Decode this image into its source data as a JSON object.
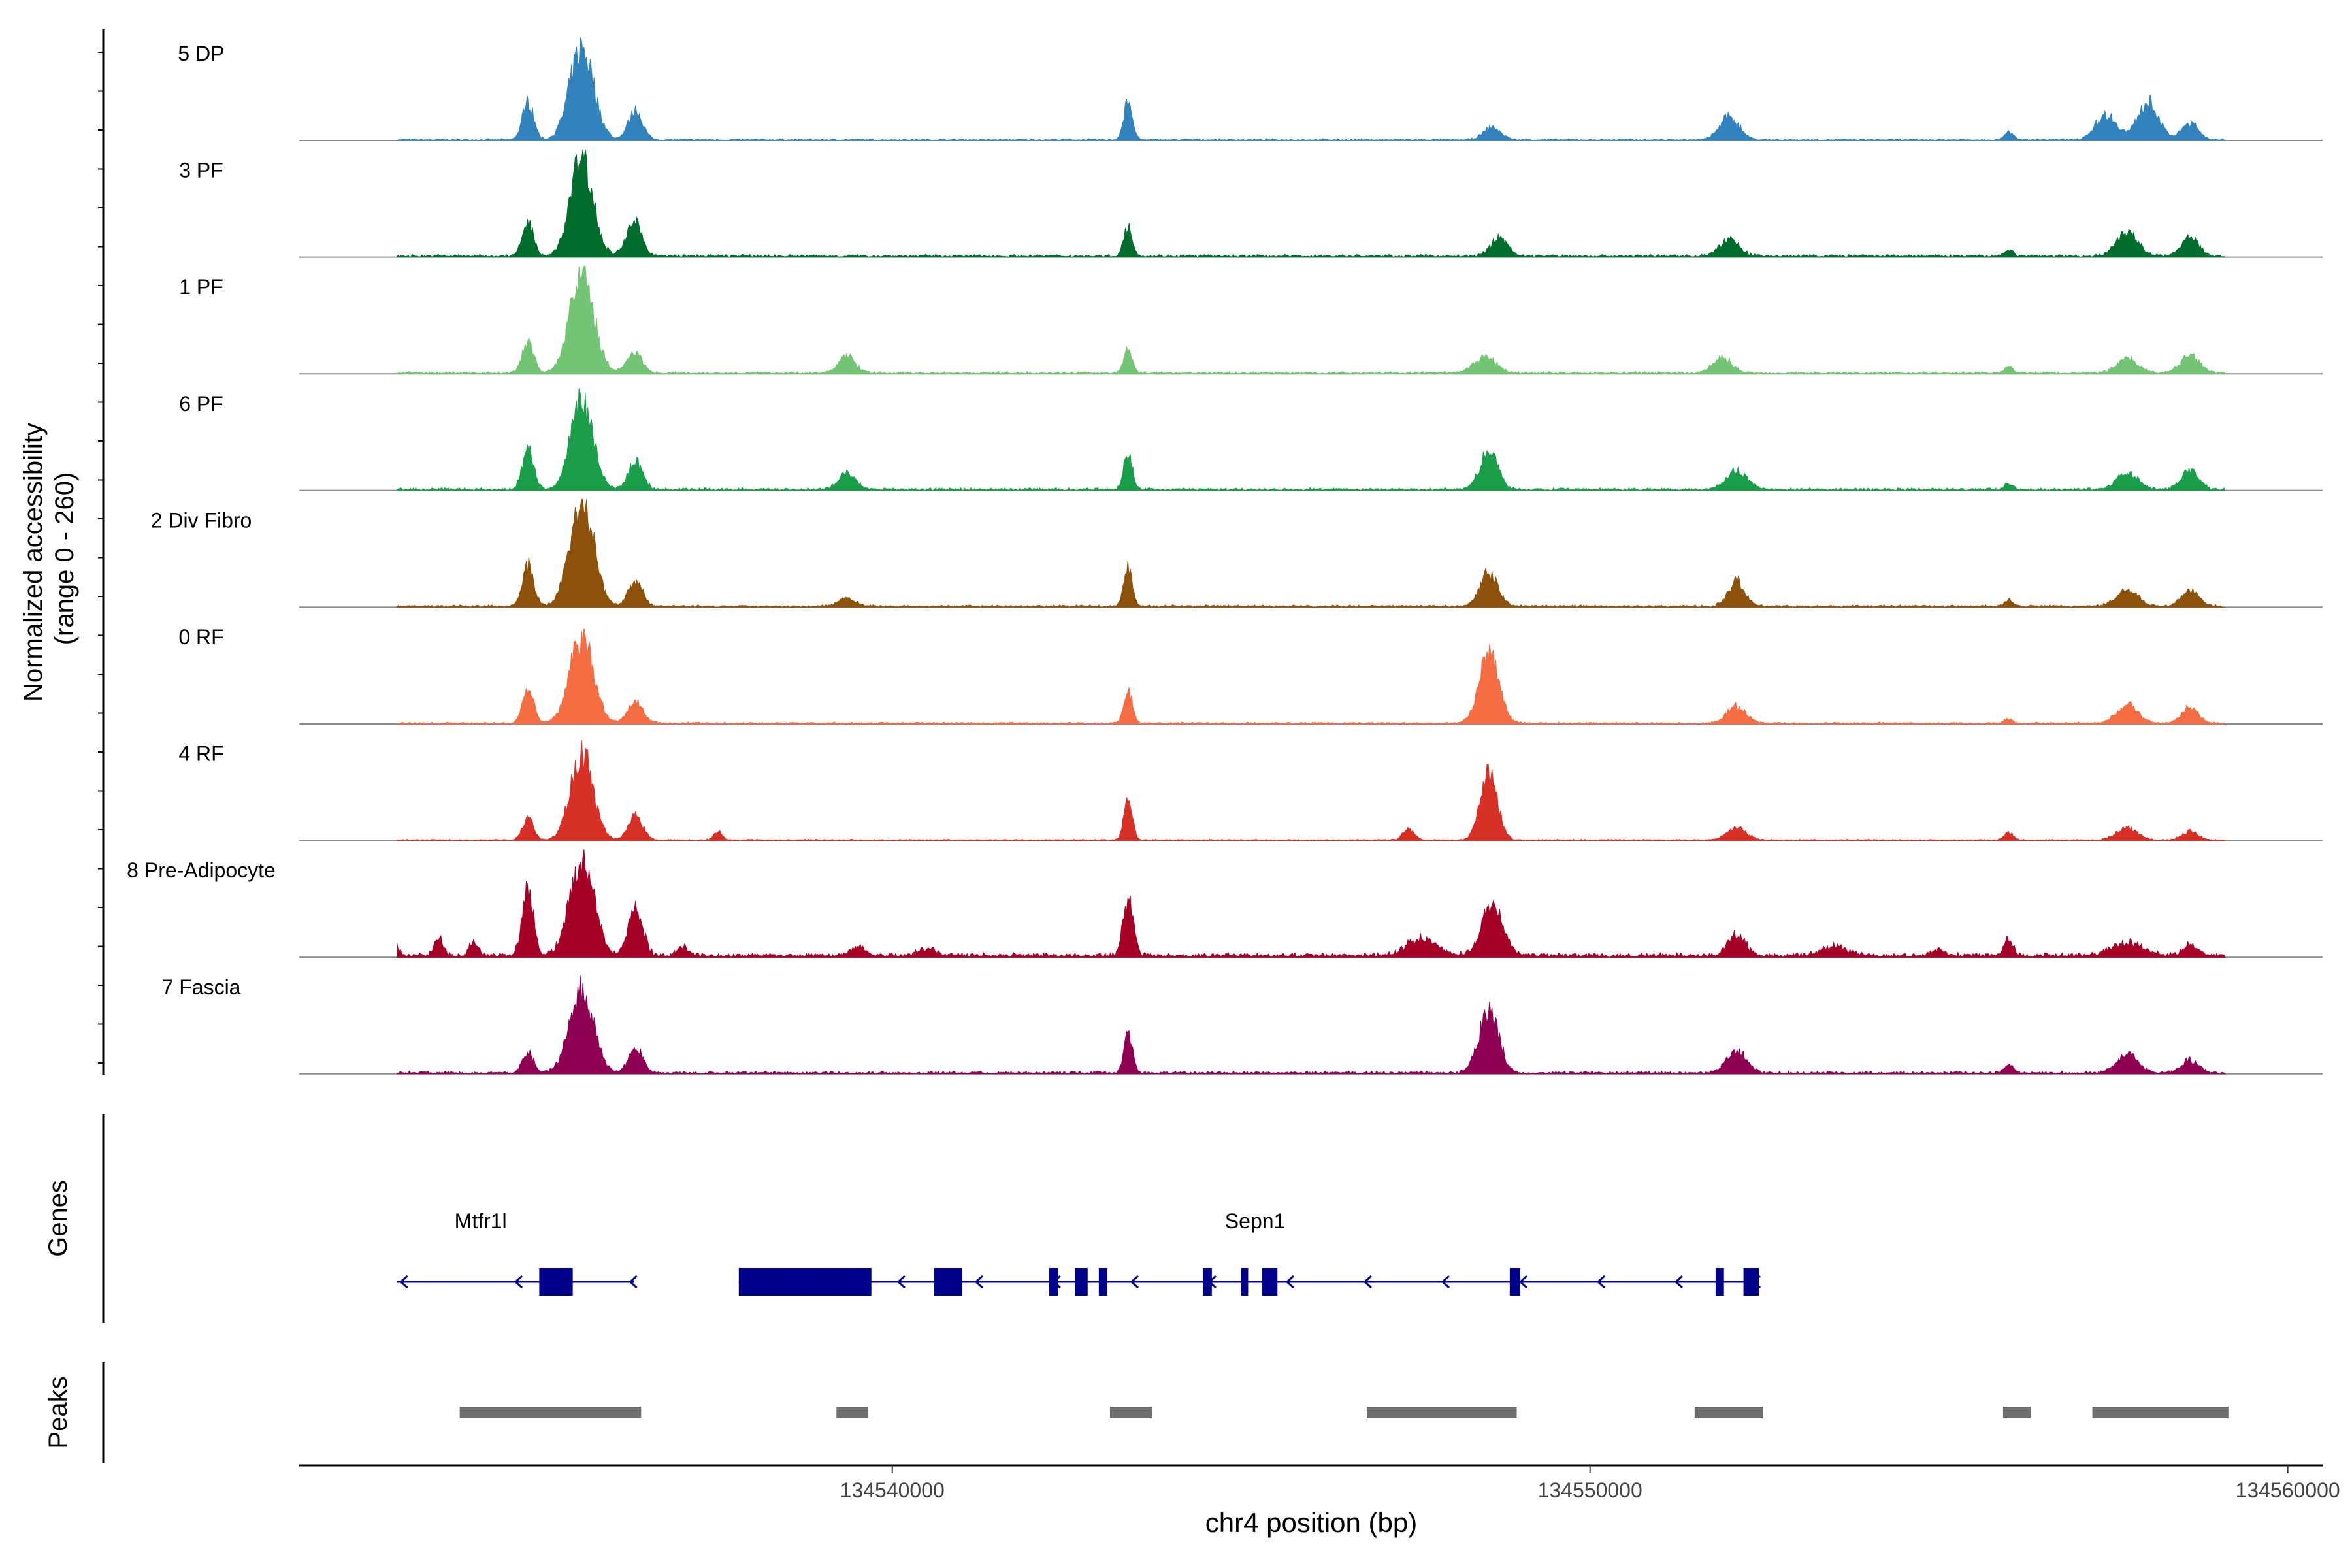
{
  "chart_data": {
    "type": "area",
    "title": "",
    "xlabel": "chr4 position (bp)",
    "ylabel": [
      "Normalized accessibility",
      "(range 0 - 260)"
    ],
    "genes_label": "Genes",
    "peaks_label": "Peaks",
    "xlim": [
      134531500,
      134560500
    ],
    "ylim": [
      0,
      260
    ],
    "x_ticks": [
      {
        "value": 134540000,
        "label": "134540000"
      },
      {
        "value": 134550000,
        "label": "134550000"
      },
      {
        "value": 134560000,
        "label": "134560000"
      }
    ],
    "track_start": 134532900,
    "track_end": 134559100,
    "tracks": [
      {
        "name": "5 DP",
        "color": "#3182bd",
        "noise": 4,
        "peaks": [
          [
            134534780,
            90,
            80
          ],
          [
            134535550,
            220,
            170
          ],
          [
            134536320,
            70,
            100
          ],
          [
            134543380,
            95,
            60
          ],
          [
            134548600,
            30,
            120
          ],
          [
            134552000,
            55,
            140
          ],
          [
            134557400,
            60,
            150
          ],
          [
            134558000,
            90,
            150
          ],
          [
            134558600,
            40,
            120
          ],
          [
            134556000,
            20,
            60
          ]
        ]
      },
      {
        "name": "3 PF",
        "color": "#006d2c",
        "noise": 6,
        "peaks": [
          [
            134534780,
            80,
            80
          ],
          [
            134535550,
            240,
            160
          ],
          [
            134536300,
            80,
            110
          ],
          [
            134543380,
            75,
            60
          ],
          [
            134548700,
            45,
            120
          ],
          [
            134552000,
            40,
            140
          ],
          [
            134557700,
            60,
            150
          ],
          [
            134558600,
            45,
            120
          ],
          [
            134556000,
            15,
            60
          ]
        ]
      },
      {
        "name": "1 PF",
        "color": "#74c476",
        "noise": 5,
        "peaks": [
          [
            134534780,
            80,
            80
          ],
          [
            134535550,
            240,
            170
          ],
          [
            134536300,
            50,
            110
          ],
          [
            134539350,
            40,
            120
          ],
          [
            134543380,
            60,
            60
          ],
          [
            134548500,
            40,
            150
          ],
          [
            134551900,
            35,
            140
          ],
          [
            134557700,
            35,
            150
          ],
          [
            134558600,
            40,
            140
          ],
          [
            134556000,
            15,
            60
          ]
        ]
      },
      {
        "name": "6 PF",
        "color": "#1b9e4a",
        "noise": 6,
        "peaks": [
          [
            134534780,
            100,
            80
          ],
          [
            134535550,
            210,
            160
          ],
          [
            134536320,
            70,
            100
          ],
          [
            134539350,
            40,
            120
          ],
          [
            134543380,
            90,
            60
          ],
          [
            134548550,
            90,
            130
          ],
          [
            134552100,
            45,
            150
          ],
          [
            134557700,
            40,
            150
          ],
          [
            134558600,
            45,
            120
          ],
          [
            134556000,
            15,
            60
          ]
        ]
      },
      {
        "name": "2 Div Fibro",
        "color": "#8c510a",
        "noise": 5,
        "peaks": [
          [
            134534780,
            100,
            80
          ],
          [
            134535550,
            250,
            170
          ],
          [
            134536320,
            60,
            100
          ],
          [
            134539350,
            20,
            120
          ],
          [
            134543380,
            95,
            60
          ],
          [
            134548550,
            80,
            130
          ],
          [
            134552100,
            60,
            120
          ],
          [
            134557700,
            40,
            150
          ],
          [
            134558600,
            40,
            120
          ],
          [
            134556000,
            15,
            60
          ]
        ]
      },
      {
        "name": "0 RF",
        "color": "#f46d43",
        "noise": 4,
        "peaks": [
          [
            134534780,
            80,
            80
          ],
          [
            134535550,
            210,
            170
          ],
          [
            134536320,
            50,
            110
          ],
          [
            134543380,
            80,
            60
          ],
          [
            134548550,
            170,
            140
          ],
          [
            134552100,
            40,
            140
          ],
          [
            134557700,
            45,
            150
          ],
          [
            134558600,
            40,
            120
          ],
          [
            134556000,
            10,
            60
          ]
        ]
      },
      {
        "name": "4 RF",
        "color": "#d73027",
        "noise": 3,
        "peaks": [
          [
            134534780,
            50,
            80
          ],
          [
            134535550,
            210,
            160
          ],
          [
            134536320,
            60,
            100
          ],
          [
            134537500,
            20,
            60
          ],
          [
            134543380,
            95,
            60
          ],
          [
            134547400,
            25,
            80
          ],
          [
            134548550,
            170,
            120
          ],
          [
            134552100,
            30,
            140
          ],
          [
            134557700,
            30,
            150
          ],
          [
            134558600,
            20,
            120
          ],
          [
            134556000,
            20,
            60
          ]
        ]
      },
      {
        "name": "8 Pre-Adipocyte",
        "color": "#a50026",
        "noise": 10,
        "peaks": [
          [
            134532900,
            25,
            40
          ],
          [
            134533500,
            40,
            60
          ],
          [
            134534000,
            35,
            60
          ],
          [
            134534780,
            160,
            80
          ],
          [
            134535550,
            230,
            170
          ],
          [
            134536320,
            120,
            100
          ],
          [
            134537000,
            20,
            80
          ],
          [
            134539500,
            20,
            100
          ],
          [
            134540500,
            15,
            120
          ],
          [
            134543380,
            140,
            70
          ],
          [
            134547600,
            40,
            220
          ],
          [
            134548600,
            120,
            150
          ],
          [
            134552100,
            50,
            120
          ],
          [
            134553500,
            20,
            200
          ],
          [
            134555000,
            15,
            80
          ],
          [
            134556000,
            40,
            60
          ],
          [
            134557700,
            30,
            220
          ],
          [
            134558600,
            25,
            100
          ]
        ]
      },
      {
        "name": "7 Fascia",
        "color": "#8e0152",
        "noise": 6,
        "peaks": [
          [
            134534780,
            50,
            80
          ],
          [
            134535550,
            200,
            170
          ],
          [
            134536320,
            60,
            100
          ],
          [
            134543380,
            95,
            60
          ],
          [
            134548550,
            150,
            140
          ],
          [
            134552100,
            55,
            140
          ],
          [
            134557700,
            45,
            150
          ],
          [
            134558600,
            30,
            120
          ],
          [
            134556000,
            20,
            60
          ]
        ]
      }
    ],
    "genes": [
      {
        "name": "Mtfr1l",
        "label_x": 134534100,
        "start": 134532900,
        "end": 134536300,
        "strand": "-",
        "exons": [
          [
            134534940,
            134535420
          ]
        ]
      },
      {
        "name": "Sepn1",
        "label_x": 134545200,
        "start": 134537800,
        "end": 134552400,
        "strand": "-",
        "exons": [
          [
            134537800,
            134539700
          ],
          [
            134540600,
            134541000
          ],
          [
            134542250,
            134542380
          ],
          [
            134542620,
            134542800
          ],
          [
            134542960,
            134543080
          ],
          [
            134544450,
            134544580
          ],
          [
            134545000,
            134545100
          ],
          [
            134545300,
            134545520
          ],
          [
            134548850,
            134549000
          ],
          [
            134551800,
            134551920
          ],
          [
            134552200,
            134552420
          ]
        ]
      }
    ],
    "peaks": [
      [
        134533800,
        134536400
      ],
      [
        134539200,
        134539650
      ],
      [
        134543120,
        134543720
      ],
      [
        134546800,
        134548950
      ],
      [
        134551500,
        134552480
      ],
      [
        134555920,
        134556320
      ],
      [
        134557200,
        134559150
      ]
    ]
  }
}
